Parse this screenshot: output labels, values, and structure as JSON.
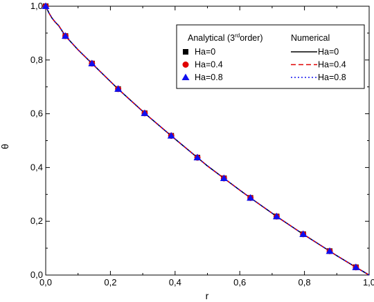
{
  "chart_data": {
    "type": "line",
    "xlabel": "r",
    "ylabel": "θ",
    "xlim": [
      0,
      1
    ],
    "ylim": [
      0,
      1
    ],
    "xticks": [
      0,
      0.2,
      0.4,
      0.6,
      0.8,
      1.0
    ],
    "yticks": [
      0,
      0.2,
      0.4,
      0.6,
      0.8,
      1.0
    ],
    "xtick_labels": [
      "0,0",
      "0,2",
      "0,4",
      "0,6",
      "0,8",
      "1,0"
    ],
    "ytick_labels": [
      "0,0",
      "0,2",
      "0,4",
      "0,6",
      "0,8",
      "1,0"
    ],
    "grid": false,
    "legend_placement": "top-right",
    "legend": {
      "analytical_header_pre": "Analytical (3",
      "analytical_header_sup": "rd",
      "analytical_header_post": "order)",
      "numerical_header": "Numerical"
    },
    "analytical_r": [
      0.0,
      0.061,
      0.143,
      0.224,
      0.306,
      0.388,
      0.469,
      0.551,
      0.633,
      0.714,
      0.796,
      0.878,
      0.959
    ],
    "series": [
      {
        "name": "Ha=0",
        "kind": "analytical",
        "marker": "square",
        "color": "#000000",
        "values": [
          1.0,
          0.889,
          0.787,
          0.692,
          0.602,
          0.518,
          0.437,
          0.36,
          0.287,
          0.218,
          0.152,
          0.089,
          0.029
        ]
      },
      {
        "name": "Ha=0.4",
        "kind": "analytical",
        "marker": "circle",
        "color": "#e00000",
        "values": [
          1.0,
          0.889,
          0.787,
          0.692,
          0.602,
          0.518,
          0.437,
          0.36,
          0.287,
          0.218,
          0.152,
          0.089,
          0.029
        ]
      },
      {
        "name": "Ha=0.8",
        "kind": "analytical",
        "marker": "triangle",
        "color": "#1010ee",
        "values": [
          1.0,
          0.889,
          0.787,
          0.692,
          0.602,
          0.518,
          0.437,
          0.36,
          0.287,
          0.218,
          0.152,
          0.089,
          0.029
        ]
      },
      {
        "name": "Ha=0",
        "kind": "numerical",
        "line": "solid",
        "color": "#000000",
        "x": [
          0.0,
          0.01,
          0.02,
          0.03,
          0.04,
          0.061,
          0.1,
          0.143,
          0.2,
          0.224,
          0.3,
          0.306,
          0.388,
          0.4,
          0.469,
          0.5,
          0.551,
          0.6,
          0.633,
          0.7,
          0.714,
          0.796,
          0.8,
          0.878,
          0.9,
          0.959,
          1.0
        ],
        "y": [
          1.0,
          0.975,
          0.955,
          0.94,
          0.928,
          0.889,
          0.838,
          0.787,
          0.72,
          0.692,
          0.609,
          0.602,
          0.518,
          0.506,
          0.437,
          0.406,
          0.36,
          0.316,
          0.287,
          0.23,
          0.218,
          0.152,
          0.149,
          0.089,
          0.072,
          0.029,
          0.0
        ]
      },
      {
        "name": "Ha=0.4",
        "kind": "numerical",
        "line": "dashed",
        "color": "#e00000",
        "x": [
          0.0,
          0.01,
          0.02,
          0.03,
          0.04,
          0.061,
          0.1,
          0.143,
          0.2,
          0.224,
          0.3,
          0.306,
          0.388,
          0.4,
          0.469,
          0.5,
          0.551,
          0.6,
          0.633,
          0.7,
          0.714,
          0.796,
          0.8,
          0.878,
          0.9,
          0.959,
          1.0
        ],
        "y": [
          1.0,
          0.975,
          0.955,
          0.94,
          0.928,
          0.889,
          0.838,
          0.787,
          0.72,
          0.692,
          0.609,
          0.602,
          0.518,
          0.506,
          0.437,
          0.406,
          0.36,
          0.316,
          0.287,
          0.23,
          0.218,
          0.152,
          0.149,
          0.089,
          0.072,
          0.029,
          0.0
        ]
      },
      {
        "name": "Ha=0.8",
        "kind": "numerical",
        "line": "dotted",
        "color": "#1010ee",
        "x": [
          0.0,
          0.01,
          0.02,
          0.03,
          0.04,
          0.061,
          0.1,
          0.143,
          0.2,
          0.224,
          0.3,
          0.306,
          0.388,
          0.4,
          0.469,
          0.5,
          0.551,
          0.6,
          0.633,
          0.7,
          0.714,
          0.796,
          0.8,
          0.878,
          0.9,
          0.959,
          1.0
        ],
        "y": [
          1.0,
          0.975,
          0.955,
          0.94,
          0.928,
          0.889,
          0.838,
          0.787,
          0.72,
          0.692,
          0.609,
          0.602,
          0.518,
          0.506,
          0.437,
          0.406,
          0.36,
          0.316,
          0.287,
          0.23,
          0.218,
          0.152,
          0.149,
          0.089,
          0.072,
          0.029,
          0.0
        ]
      }
    ]
  }
}
